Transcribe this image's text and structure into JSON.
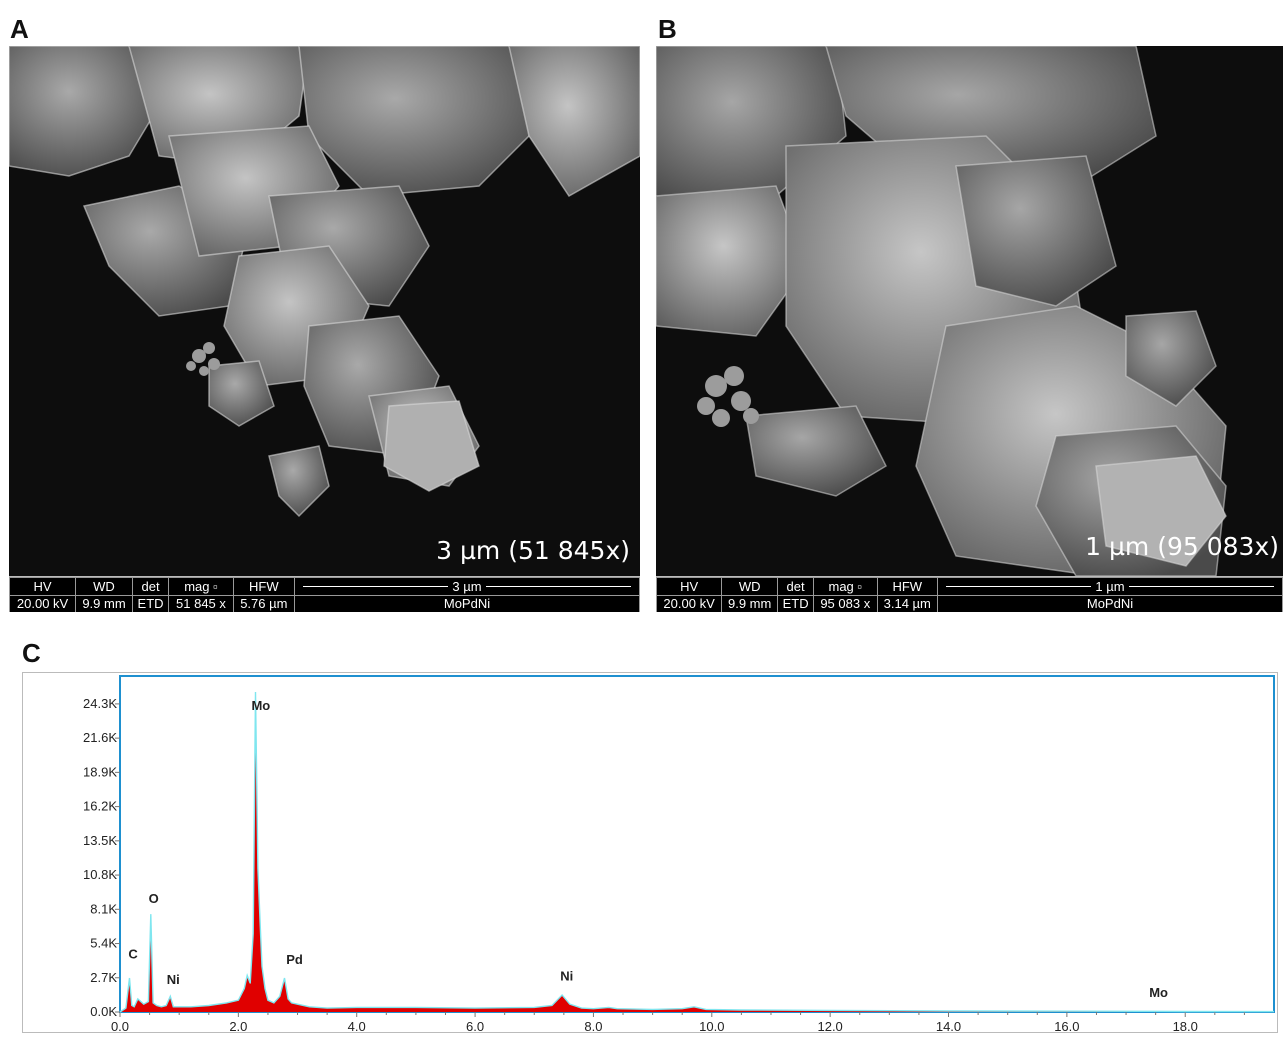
{
  "panels": {
    "a": {
      "letter": "A",
      "scale_text": "3 µm (51 845x)",
      "bar": {
        "hv_label": "HV",
        "hv_value": "20.00 kV",
        "wd_label": "WD",
        "wd_value": "9.9 mm",
        "det_label": "det",
        "det_value": "ETD",
        "mag_label": "mag ▫",
        "mag_value": "51 845 x",
        "hfw_label": "HFW",
        "hfw_value": "5.76 µm",
        "scalebar": "3 µm",
        "sample": "MoPdNi"
      }
    },
    "b": {
      "letter": "B",
      "scale_text": "1 µm (95 083x)",
      "bar": {
        "hv_label": "HV",
        "hv_value": "20.00 kV",
        "wd_label": "WD",
        "wd_value": "9.9 mm",
        "det_label": "det",
        "det_value": "ETD",
        "mag_label": "mag ▫",
        "mag_value": "95 083 x",
        "hfw_label": "HFW",
        "hfw_value": "3.14 µm",
        "scalebar": "1 µm",
        "sample": "MoPdNi"
      }
    },
    "c": {
      "letter": "C"
    }
  },
  "colors": {
    "spectrum_fill": "#e00000",
    "spectrum_line": "#7fe6ef",
    "frame": "#1e90d0",
    "axis": "#777777"
  },
  "chart_data": {
    "type": "area",
    "title": "",
    "xlabel": "",
    "ylabel": "",
    "xlim": [
      0.0,
      19.5
    ],
    "ylim": [
      0,
      26500
    ],
    "x_ticks": [
      "0.0",
      "2.0",
      "4.0",
      "6.0",
      "8.0",
      "10.0",
      "12.0",
      "14.0",
      "16.0",
      "18.0"
    ],
    "y_ticks": [
      "0.0K",
      "2.7K",
      "5.4K",
      "8.1K",
      "10.8K",
      "13.5K",
      "16.2K",
      "18.9K",
      "21.6K",
      "24.3K"
    ],
    "y_tick_values": [
      0,
      2700,
      5400,
      8100,
      10800,
      13500,
      16200,
      18900,
      21600,
      24300
    ],
    "x_tick_values": [
      0,
      2,
      4,
      6,
      8,
      10,
      12,
      14,
      16,
      18
    ],
    "series": [
      {
        "x": [
          0.0,
          0.1,
          0.16,
          0.2,
          0.24,
          0.3,
          0.4,
          0.48,
          0.52,
          0.56,
          0.62,
          0.7,
          0.78,
          0.85,
          0.9,
          1.0,
          1.2,
          1.5,
          1.8,
          2.0,
          2.1,
          2.15,
          2.2,
          2.25,
          2.29,
          2.33,
          2.37,
          2.4,
          2.45,
          2.5,
          2.6,
          2.7,
          2.78,
          2.84,
          2.9,
          3.0,
          3.2,
          3.5,
          4.0,
          5.0,
          6.0,
          7.0,
          7.3,
          7.47,
          7.6,
          7.8,
          8.0,
          8.26,
          8.4,
          9.0,
          9.5,
          9.7,
          9.9,
          10.5,
          12.0,
          14.0,
          16.0,
          17.4,
          18.0,
          19.5
        ],
        "y": [
          0,
          300,
          2600,
          500,
          400,
          1000,
          600,
          800,
          7500,
          700,
          500,
          400,
          500,
          1200,
          400,
          400,
          400,
          500,
          700,
          900,
          1800,
          2800,
          2200,
          6000,
          24500,
          11000,
          6500,
          3500,
          1800,
          900,
          700,
          1200,
          2600,
          1000,
          700,
          600,
          400,
          300,
          350,
          350,
          300,
          350,
          500,
          1300,
          600,
          300,
          250,
          350,
          250,
          200,
          250,
          400,
          200,
          150,
          120,
          80,
          60,
          50,
          40,
          30
        ]
      }
    ],
    "annotations": [
      {
        "text": "C",
        "x": 0.22,
        "y": 4200
      },
      {
        "text": "O",
        "x": 0.57,
        "y": 8600
      },
      {
        "text": "Ni",
        "x": 0.9,
        "y": 2200
      },
      {
        "text": "Mo",
        "x": 2.38,
        "y": 23800
      },
      {
        "text": "Pd",
        "x": 2.95,
        "y": 3800
      },
      {
        "text": "Ni",
        "x": 7.55,
        "y": 2500
      },
      {
        "text": "Mo",
        "x": 17.55,
        "y": 1200
      }
    ]
  }
}
